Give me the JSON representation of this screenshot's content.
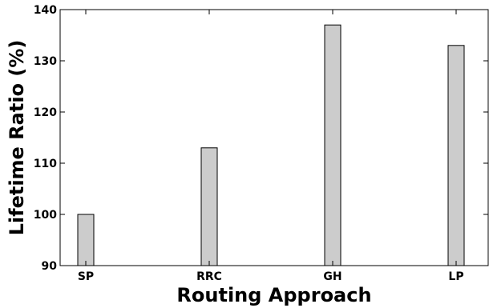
{
  "chart_data": {
    "type": "bar",
    "categories": [
      "SP",
      "RRC",
      "GH",
      "LP"
    ],
    "values": [
      100,
      113,
      137,
      133
    ],
    "xlabel": "Routing Approach",
    "ylabel": "Lifetime Ratio (%)",
    "ylim": [
      90,
      140
    ],
    "yticks": [
      90,
      100,
      110,
      120,
      130,
      140
    ],
    "grid": false,
    "bar_color": "#cccccc",
    "edge_color": "#000000"
  }
}
